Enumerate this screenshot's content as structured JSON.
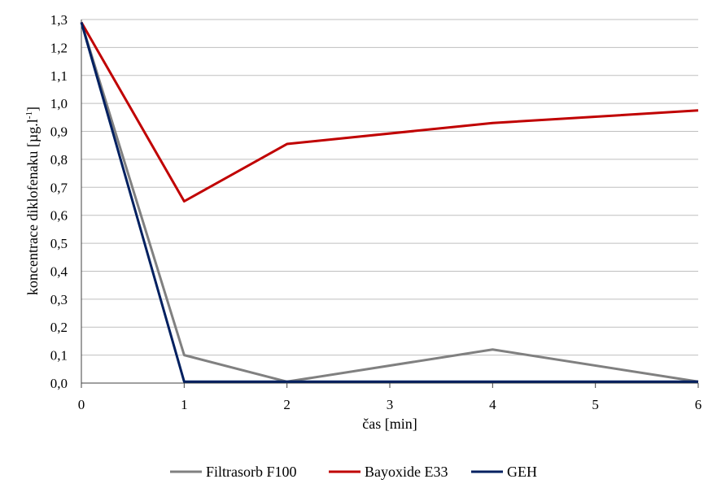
{
  "chart_data": {
    "type": "line",
    "title": "",
    "xlabel": "čas [min]",
    "ylabel": "koncentrace diklofenaku [µg.l",
    "ylabel_sup": "-1",
    "ylabel_end": "]",
    "x_categories": [
      "0",
      "1",
      "2",
      "3",
      "4",
      "5",
      "6"
    ],
    "y_ticks": [
      "0,0",
      "0,1",
      "0,2",
      "0,3",
      "0,4",
      "0,5",
      "0,6",
      "0,7",
      "0,8",
      "0,9",
      "1,0",
      "1,1",
      "1,2",
      "1,3"
    ],
    "ylim": [
      0,
      1.3
    ],
    "grid": "horizontal",
    "legend_position": "bottom",
    "series": [
      {
        "name": "Filtrasorb F100",
        "color": "#808080",
        "points": [
          [
            0,
            1.29
          ],
          [
            1,
            0.1
          ],
          [
            2,
            0.005
          ],
          [
            4,
            0.12
          ],
          [
            6,
            0.005
          ]
        ]
      },
      {
        "name": "Bayoxide E33",
        "color": "#C00000",
        "points": [
          [
            0,
            1.29
          ],
          [
            1,
            0.65
          ],
          [
            2,
            0.855
          ],
          [
            4,
            0.93
          ],
          [
            6,
            0.975
          ]
        ]
      },
      {
        "name": "GEH",
        "color": "#002060",
        "points": [
          [
            0,
            1.29
          ],
          [
            1,
            0.005
          ],
          [
            2,
            0.005
          ],
          [
            4,
            0.005
          ],
          [
            6,
            0.005
          ]
        ]
      }
    ]
  }
}
